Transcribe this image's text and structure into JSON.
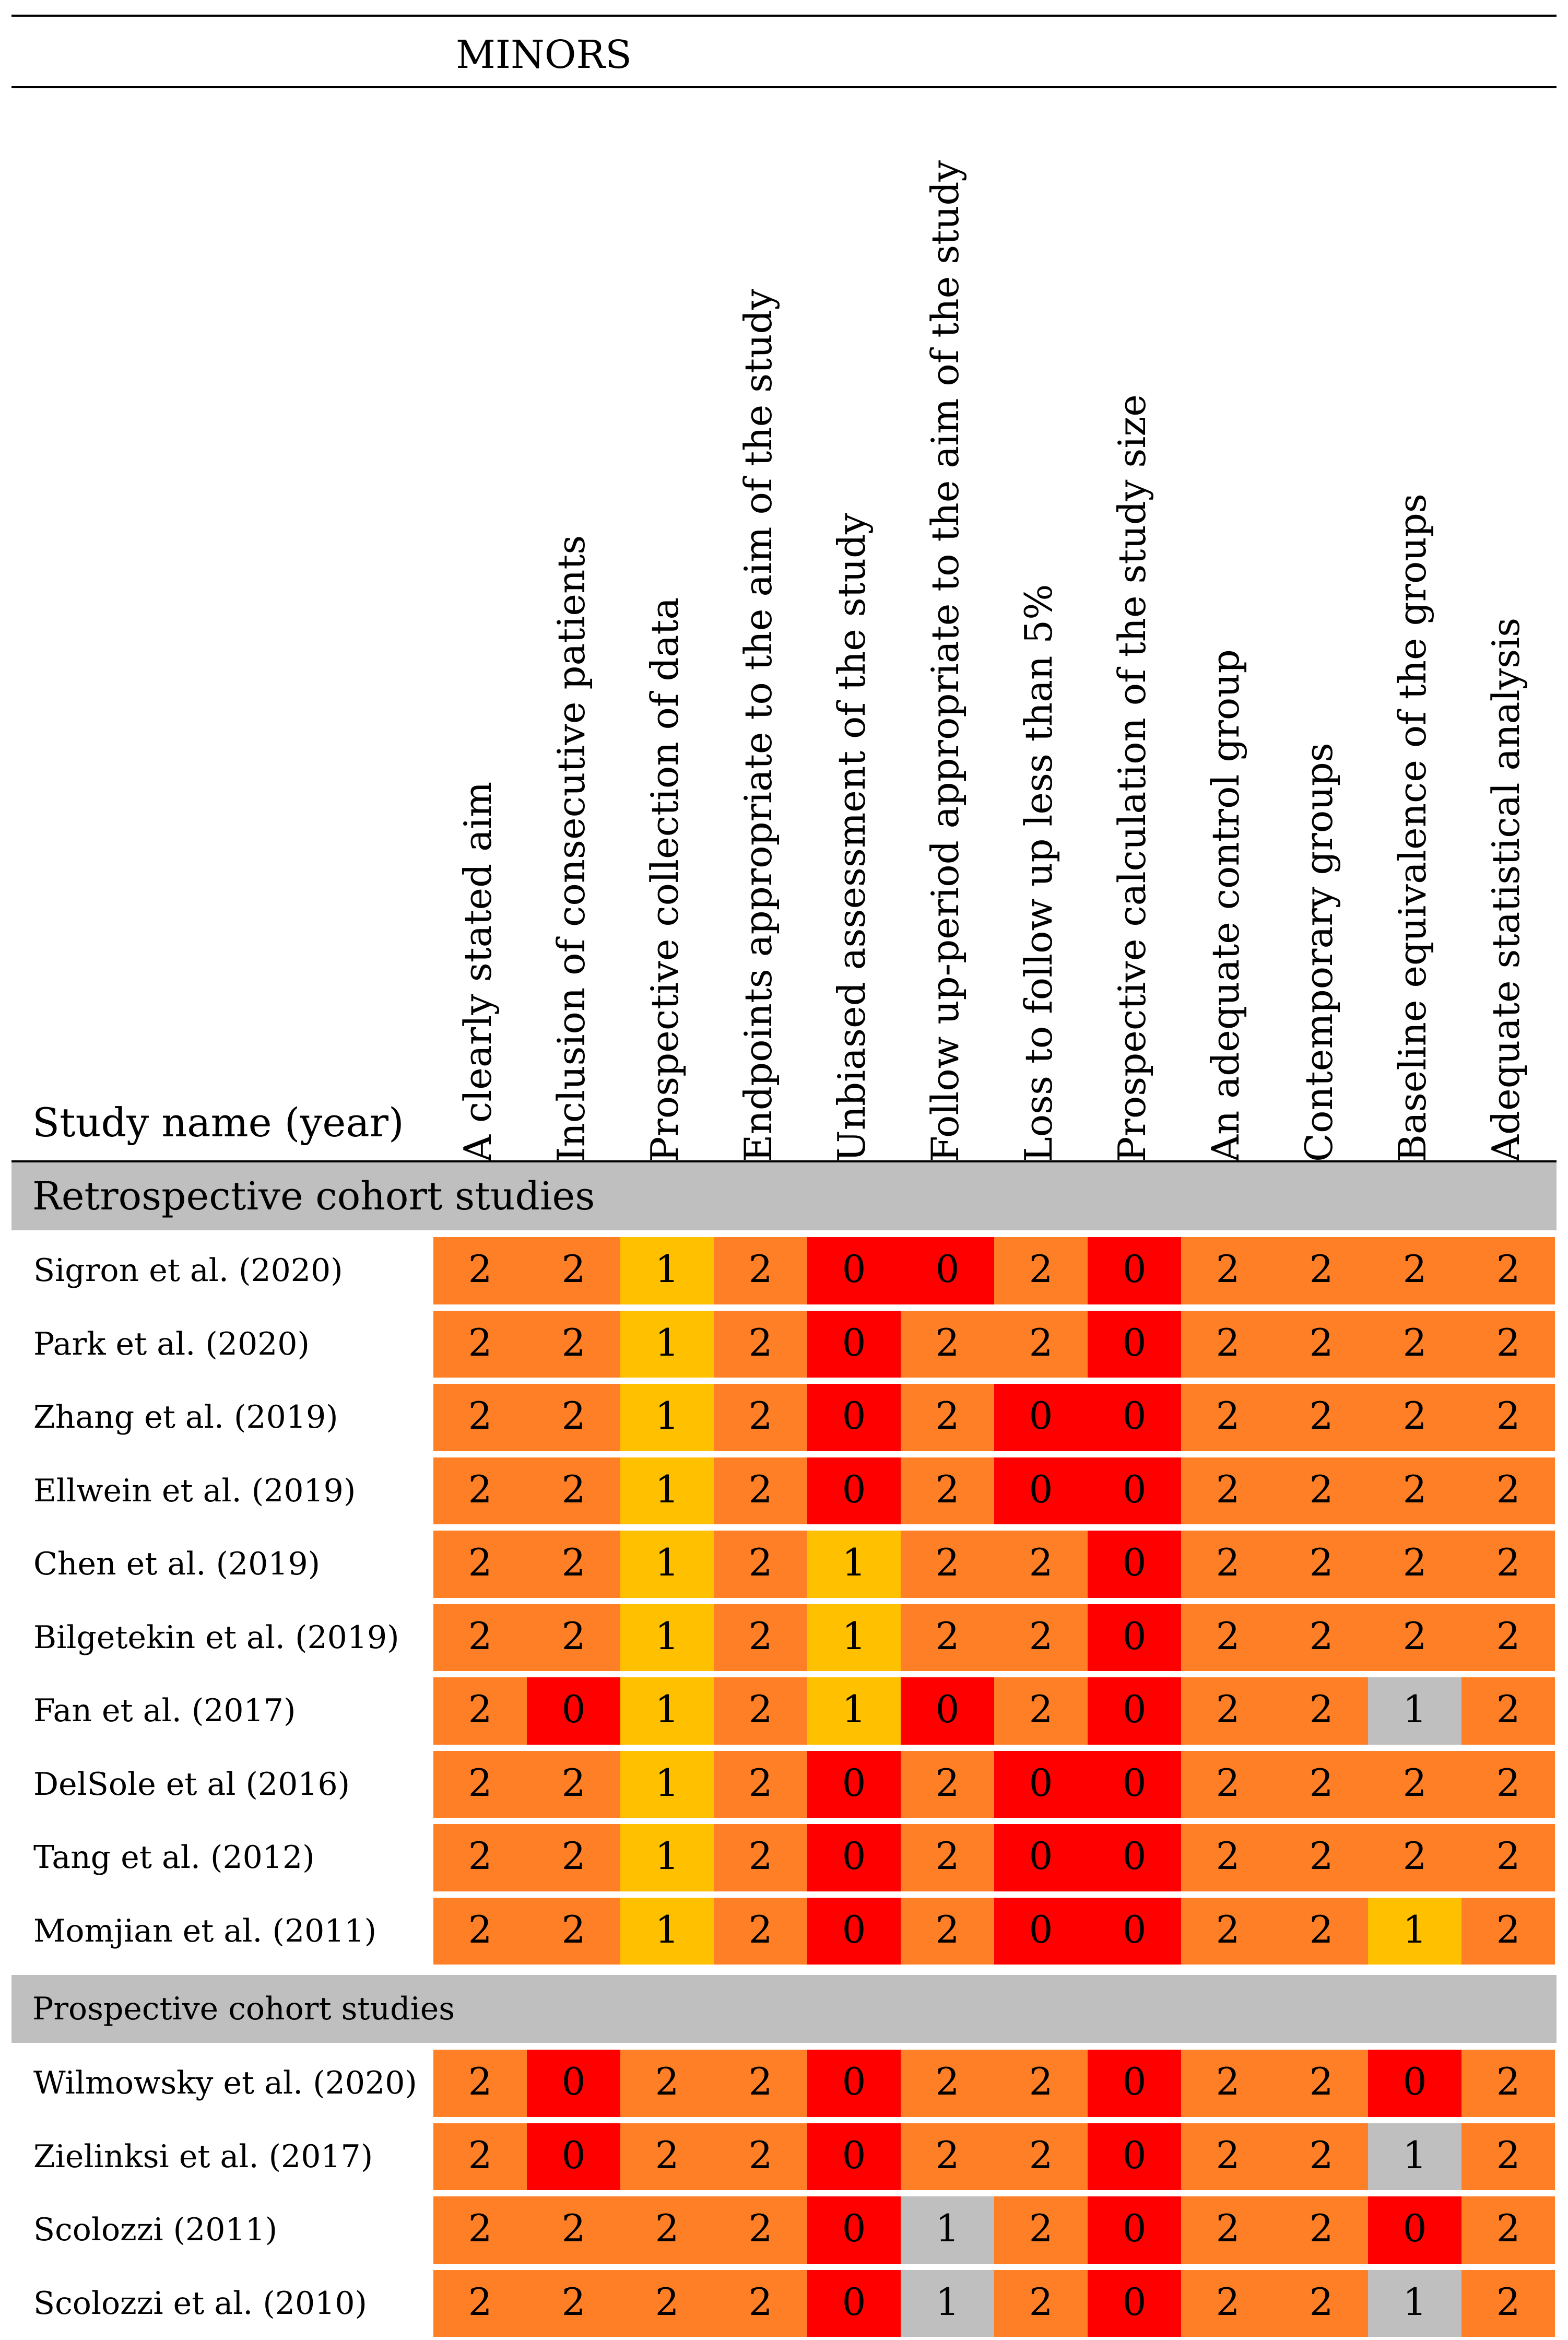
{
  "table": {
    "title": "MINORS",
    "study_column_header": "Study name (year)",
    "criteria": [
      "A clearly stated aim",
      "Inclusion of consecutive patients",
      "Prospective collection of data",
      "Endpoints appropriate to the aim of the study",
      "Unbiased assessment of the study",
      "Follow up-period appropriate to the aim of the study",
      "Loss to follow up less than 5%",
      "Prospective calculation of the study size",
      "An adequate control group",
      "Contemporary groups",
      "Baseline equivalence of the groups",
      "Adequate statistical analysis"
    ],
    "score_colors": {
      "0": "#ff0000",
      "1": "#ffc000",
      "2": "#ff7f27",
      "1-grey": "#bfbfbf"
    },
    "sections": [
      {
        "title": "Retrospective cohort studies",
        "rows": [
          {
            "study": "Sigron et al. (2020)",
            "scores": [
              "2",
              "2",
              "1",
              "2",
              "0",
              "0",
              "2",
              "0",
              "2",
              "2",
              "2",
              "2"
            ],
            "colors": [
              "2",
              "2",
              "1",
              "2",
              "0",
              "0",
              "2",
              "0",
              "2",
              "2",
              "2",
              "2"
            ]
          },
          {
            "study": "Park et al. (2020)",
            "scores": [
              "2",
              "2",
              "1",
              "2",
              "0",
              "2",
              "2",
              "0",
              "2",
              "2",
              "2",
              "2"
            ],
            "colors": [
              "2",
              "2",
              "1",
              "2",
              "0",
              "2",
              "2",
              "0",
              "2",
              "2",
              "2",
              "2"
            ]
          },
          {
            "study": "Zhang et al. (2019)",
            "scores": [
              "2",
              "2",
              "1",
              "2",
              "0",
              "2",
              "0",
              "0",
              "2",
              "2",
              "2",
              "2"
            ],
            "colors": [
              "2",
              "2",
              "1",
              "2",
              "0",
              "2",
              "0",
              "0",
              "2",
              "2",
              "2",
              "2"
            ]
          },
          {
            "study": "Ellwein et al. (2019)",
            "scores": [
              "2",
              "2",
              "1",
              "2",
              "0",
              "2",
              "0",
              "0",
              "2",
              "2",
              "2",
              "2"
            ],
            "colors": [
              "2",
              "2",
              "1",
              "2",
              "0",
              "2",
              "0",
              "0",
              "2",
              "2",
              "2",
              "2"
            ]
          },
          {
            "study": "Chen et al. (2019)",
            "scores": [
              "2",
              "2",
              "1",
              "2",
              "1",
              "2",
              "2",
              "0",
              "2",
              "2",
              "2",
              "2"
            ],
            "colors": [
              "2",
              "2",
              "1",
              "2",
              "1",
              "2",
              "2",
              "0",
              "2",
              "2",
              "2",
              "2"
            ]
          },
          {
            "study": "Bilgetekin et al. (2019)",
            "scores": [
              "2",
              "2",
              "1",
              "2",
              "1",
              "2",
              "2",
              "0",
              "2",
              "2",
              "2",
              "2"
            ],
            "colors": [
              "2",
              "2",
              "1",
              "2",
              "1",
              "2",
              "2",
              "0",
              "2",
              "2",
              "2",
              "2"
            ]
          },
          {
            "study": "Fan et al. (2017)",
            "scores": [
              "2",
              "0",
              "1",
              "2",
              "1",
              "0",
              "2",
              "0",
              "2",
              "2",
              "1",
              "2"
            ],
            "colors": [
              "2",
              "0",
              "1",
              "2",
              "1",
              "0",
              "2",
              "0",
              "2",
              "2",
              "1-grey",
              "2"
            ]
          },
          {
            "study": "DelSole et al (2016)",
            "scores": [
              "2",
              "2",
              "1",
              "2",
              "0",
              "2",
              "0",
              "0",
              "2",
              "2",
              "2",
              "2"
            ],
            "colors": [
              "2",
              "2",
              "1",
              "2",
              "0",
              "2",
              "0",
              "0",
              "2",
              "2",
              "2",
              "2"
            ]
          },
          {
            "study": "Tang et al. (2012)",
            "scores": [
              "2",
              "2",
              "1",
              "2",
              "0",
              "2",
              "0",
              "0",
              "2",
              "2",
              "2",
              "2"
            ],
            "colors": [
              "2",
              "2",
              "1",
              "2",
              "0",
              "2",
              "0",
              "0",
              "2",
              "2",
              "2",
              "2"
            ]
          },
          {
            "study": "Momjian et al. (2011)",
            "scores": [
              "2",
              "2",
              "1",
              "2",
              "0",
              "2",
              "0",
              "0",
              "2",
              "2",
              "1",
              "2"
            ],
            "colors": [
              "2",
              "2",
              "1",
              "2",
              "0",
              "2",
              "0",
              "0",
              "2",
              "2",
              "1",
              "2"
            ]
          }
        ]
      },
      {
        "title": "Prospective cohort studies",
        "rows": [
          {
            "study": "Wilmowsky et al. (2020)",
            "scores": [
              "2",
              "0",
              "2",
              "2",
              "0",
              "2",
              "2",
              "0",
              "2",
              "2",
              "0",
              "2"
            ],
            "colors": [
              "2",
              "0",
              "2",
              "2",
              "0",
              "2",
              "2",
              "0",
              "2",
              "2",
              "0",
              "2"
            ]
          },
          {
            "study": "Zielinksi et al. (2017)",
            "scores": [
              "2",
              "0",
              "2",
              "2",
              "0",
              "2",
              "2",
              "0",
              "2",
              "2",
              "1",
              "2"
            ],
            "colors": [
              "2",
              "0",
              "2",
              "2",
              "0",
              "2",
              "2",
              "0",
              "2",
              "2",
              "1-grey",
              "2"
            ]
          },
          {
            "study": "Scolozzi (2011)",
            "scores": [
              "2",
              "2",
              "2",
              "2",
              "0",
              "1",
              "2",
              "0",
              "2",
              "2",
              "0",
              "2"
            ],
            "colors": [
              "2",
              "2",
              "2",
              "2",
              "0",
              "1-grey",
              "2",
              "0",
              "2",
              "2",
              "0",
              "2"
            ]
          },
          {
            "study": "Scolozzi et al. (2010)",
            "scores": [
              "2",
              "2",
              "2",
              "2",
              "0",
              "1",
              "2",
              "0",
              "2",
              "2",
              "1",
              "2"
            ],
            "colors": [
              "2",
              "2",
              "2",
              "2",
              "0",
              "1-grey",
              "2",
              "0",
              "2",
              "2",
              "1-grey",
              "2"
            ]
          }
        ]
      }
    ]
  }
}
